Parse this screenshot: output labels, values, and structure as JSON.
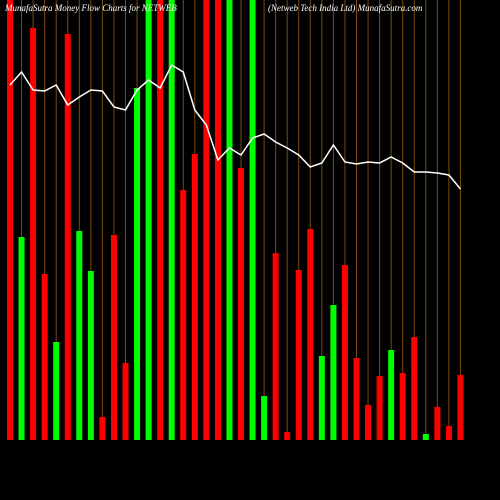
{
  "chart_data": {
    "type": "bar",
    "title": "MunafaSutra  Money Flow  Charts for NETWEB",
    "subtitle": "(Netweb Tech India  Ltd) MunafaSutra.com",
    "categories": [
      null,
      null,
      null,
      null,
      null,
      null,
      null,
      null,
      null,
      null,
      null,
      null,
      null,
      null,
      null,
      null,
      null,
      null,
      null,
      null,
      null,
      null,
      null,
      null,
      null,
      null,
      null,
      null,
      null,
      null,
      null,
      null,
      null,
      null,
      null,
      null,
      null,
      null,
      null,
      null
    ],
    "values": [
      440,
      203,
      412,
      166,
      98,
      406,
      209,
      169,
      23,
      205,
      77,
      352,
      440,
      440,
      440,
      250,
      286,
      440,
      440,
      440,
      272,
      440,
      44,
      187,
      8,
      170,
      211,
      84,
      135,
      175,
      82,
      35,
      64,
      90,
      67,
      103,
      6,
      33,
      14,
      65
    ],
    "colors": [
      "#ff0000",
      "#00ff00",
      "#ff0000",
      "#ff0000",
      "#00ff00",
      "#ff0000",
      "#00ff00",
      "#00ff00",
      "#ff0000",
      "#ff0000",
      "#ff0000",
      "#00ff00",
      "#00ff00",
      "#ff0000",
      "#00ff00",
      "#ff0000",
      "#ff0000",
      "#ff0000",
      "#ff0000",
      "#00ff00",
      "#ff0000",
      "#00ff00",
      "#00ff00",
      "#ff0000",
      "#ff0000",
      "#ff0000",
      "#ff0000",
      "#00ff00",
      "#00ff00",
      "#ff0000",
      "#ff0000",
      "#ff0000",
      "#ff0000",
      "#00ff00",
      "#ff0000",
      "#ff0000",
      "#00ff00",
      "#ff0000",
      "#ff0000",
      "#ff0000"
    ],
    "line_values": [
      355,
      368,
      350,
      349,
      355,
      335,
      343,
      350,
      349,
      333,
      330,
      350,
      360,
      352,
      375,
      368,
      330,
      315,
      280,
      292,
      285,
      302,
      306,
      298,
      292,
      285,
      273,
      277,
      295,
      278,
      276,
      278,
      277,
      283,
      277,
      268,
      268,
      267,
      265,
      251
    ],
    "line_color": "#ffffff",
    "ylim": [
      0,
      440
    ]
  }
}
